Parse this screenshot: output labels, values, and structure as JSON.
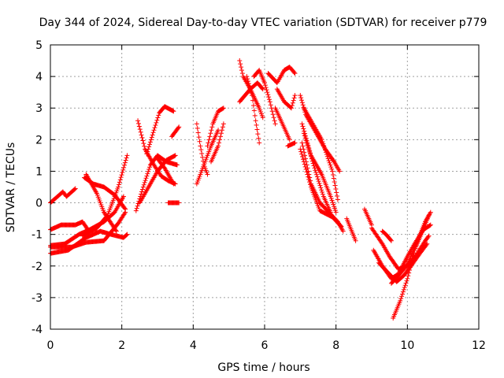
{
  "chart_data": {
    "type": "scatter",
    "title": "Day 344 of 2024, Sidereal Day-to-day VTEC variation (SDTVAR) for receiver p779",
    "xlabel": "GPS time / hours",
    "ylabel": "SDTVAR / TECUs",
    "xlim": [
      0,
      12
    ],
    "ylim": [
      -4,
      5
    ],
    "xticks": [
      0,
      2,
      4,
      6,
      8,
      10,
      12
    ],
    "yticks": [
      -4,
      -3,
      -2,
      -1,
      0,
      1,
      2,
      3,
      4,
      5
    ],
    "grid": true,
    "marker": "+",
    "color": "#ff0000",
    "tracks": [
      [
        [
          0.0,
          0.0
        ],
        [
          0.15,
          0.15
        ],
        [
          0.35,
          0.35
        ],
        [
          0.45,
          0.2
        ],
        [
          0.7,
          0.45
        ]
      ],
      [
        [
          0.0,
          -0.85
        ],
        [
          0.3,
          -0.7
        ],
        [
          0.7,
          -0.7
        ],
        [
          0.9,
          -0.6
        ],
        [
          1.05,
          -0.85
        ]
      ],
      [
        [
          0.0,
          -1.6
        ],
        [
          0.5,
          -1.5
        ],
        [
          1.0,
          -1.1
        ],
        [
          1.4,
          -0.9
        ],
        [
          1.7,
          -1.0
        ],
        [
          2.05,
          -1.1
        ],
        [
          2.15,
          -1.0
        ]
      ],
      [
        [
          0.0,
          -1.35
        ],
        [
          0.4,
          -1.3
        ],
        [
          0.8,
          -1.0
        ],
        [
          1.1,
          -0.85
        ],
        [
          1.5,
          -0.6
        ],
        [
          1.8,
          -0.3
        ],
        [
          2.05,
          0.2
        ]
      ],
      [
        [
          0.9,
          -1.05
        ],
        [
          1.3,
          -0.8
        ],
        [
          1.6,
          -0.4
        ],
        [
          1.9,
          0.5
        ],
        [
          2.15,
          1.5
        ]
      ],
      [
        [
          0.0,
          -1.4
        ],
        [
          0.6,
          -1.4
        ],
        [
          1.0,
          -1.25
        ],
        [
          1.5,
          -1.2
        ],
        [
          1.9,
          -0.65
        ],
        [
          2.1,
          -0.3
        ]
      ],
      [
        [
          0.95,
          0.8
        ],
        [
          1.2,
          0.6
        ],
        [
          1.5,
          0.5
        ],
        [
          1.8,
          0.25
        ],
        [
          2.1,
          -0.2
        ]
      ],
      [
        [
          1.0,
          0.9
        ],
        [
          1.3,
          0.3
        ],
        [
          1.5,
          -0.3
        ],
        [
          1.85,
          -0.9
        ]
      ],
      [
        [
          2.4,
          -0.25
        ],
        [
          2.6,
          0.5
        ],
        [
          2.8,
          1.2
        ],
        [
          3.0,
          1.5
        ],
        [
          3.25,
          1.3
        ],
        [
          3.55,
          1.2
        ]
      ],
      [
        [
          2.45,
          2.6
        ],
        [
          2.65,
          1.7
        ],
        [
          2.9,
          1.2
        ],
        [
          3.1,
          0.85
        ],
        [
          3.3,
          0.7
        ],
        [
          3.5,
          0.6
        ]
      ],
      [
        [
          2.5,
          0.0
        ],
        [
          2.8,
          0.6
        ],
        [
          3.0,
          1.0
        ],
        [
          3.25,
          1.35
        ],
        [
          3.5,
          1.5
        ]
      ],
      [
        [
          2.7,
          1.55
        ],
        [
          2.9,
          2.3
        ],
        [
          3.05,
          2.85
        ],
        [
          3.2,
          3.05
        ],
        [
          3.45,
          2.9
        ]
      ],
      [
        [
          3.0,
          1.4
        ],
        [
          3.2,
          1.1
        ],
        [
          3.45,
          0.6
        ]
      ],
      [
        [
          3.4,
          2.1
        ],
        [
          3.6,
          2.4
        ]
      ],
      [
        [
          3.3,
          0.0
        ],
        [
          3.6,
          0.0
        ]
      ],
      [
        [
          4.1,
          2.5
        ],
        [
          4.2,
          1.8
        ],
        [
          4.3,
          1.2
        ],
        [
          4.4,
          0.9
        ]
      ],
      [
        [
          4.1,
          0.6
        ],
        [
          4.3,
          1.2
        ],
        [
          4.5,
          1.8
        ],
        [
          4.7,
          2.3
        ]
      ],
      [
        [
          4.4,
          1.8
        ],
        [
          4.55,
          2.5
        ],
        [
          4.7,
          2.9
        ],
        [
          4.85,
          3.0
        ]
      ],
      [
        [
          4.5,
          1.3
        ],
        [
          4.7,
          1.8
        ],
        [
          4.85,
          2.5
        ]
      ],
      [
        [
          5.3,
          4.5
        ],
        [
          5.4,
          4.0
        ],
        [
          5.6,
          3.6
        ],
        [
          5.85,
          3.0
        ],
        [
          5.95,
          2.7
        ]
      ],
      [
        [
          5.3,
          3.2
        ],
        [
          5.6,
          3.6
        ],
        [
          5.8,
          3.8
        ],
        [
          5.95,
          3.6
        ]
      ],
      [
        [
          5.5,
          4.0
        ],
        [
          5.65,
          3.4
        ],
        [
          5.75,
          2.6
        ],
        [
          5.85,
          1.9
        ]
      ],
      [
        [
          5.7,
          4.0
        ],
        [
          5.85,
          4.2
        ],
        [
          6.0,
          3.8
        ]
      ],
      [
        [
          6.0,
          3.8
        ],
        [
          6.15,
          3.2
        ],
        [
          6.3,
          2.5
        ]
      ],
      [
        [
          6.1,
          4.1
        ],
        [
          6.35,
          3.8
        ],
        [
          6.55,
          4.2
        ],
        [
          6.7,
          4.3
        ],
        [
          6.85,
          4.1
        ]
      ],
      [
        [
          6.3,
          3.0
        ],
        [
          6.5,
          2.5
        ],
        [
          6.7,
          2.0
        ]
      ],
      [
        [
          6.35,
          3.6
        ],
        [
          6.55,
          3.2
        ],
        [
          6.75,
          3.0
        ],
        [
          6.85,
          3.4
        ]
      ],
      [
        [
          6.65,
          1.8
        ],
        [
          6.85,
          1.9
        ]
      ],
      [
        [
          7.0,
          3.4
        ],
        [
          7.15,
          2.8
        ],
        [
          7.4,
          2.3
        ],
        [
          7.7,
          1.7
        ],
        [
          7.95,
          1.3
        ],
        [
          8.1,
          1.0
        ]
      ],
      [
        [
          7.1,
          3.0
        ],
        [
          7.3,
          2.6
        ],
        [
          7.6,
          2.0
        ],
        [
          7.9,
          1.0
        ],
        [
          8.05,
          0.1
        ]
      ],
      [
        [
          7.05,
          2.5
        ],
        [
          7.3,
          1.5
        ],
        [
          7.6,
          0.9
        ],
        [
          7.85,
          0.2
        ],
        [
          8.0,
          -0.3
        ]
      ],
      [
        [
          7.1,
          2.2
        ],
        [
          7.4,
          1.1
        ],
        [
          7.65,
          0.2
        ],
        [
          7.85,
          -0.3
        ]
      ],
      [
        [
          7.05,
          1.9
        ],
        [
          7.3,
          0.6
        ],
        [
          7.55,
          0.0
        ],
        [
          7.8,
          -0.3
        ],
        [
          8.05,
          -0.6
        ],
        [
          8.2,
          -0.9
        ]
      ],
      [
        [
          7.0,
          1.7
        ],
        [
          7.3,
          0.5
        ],
        [
          7.55,
          -0.25
        ],
        [
          7.9,
          -0.45
        ],
        [
          8.15,
          -0.75
        ]
      ],
      [
        [
          8.8,
          -0.2
        ],
        [
          9.0,
          -0.7
        ]
      ],
      [
        [
          8.3,
          -0.5
        ],
        [
          8.55,
          -1.2
        ]
      ],
      [
        [
          9.0,
          -0.8
        ],
        [
          9.3,
          -1.3
        ],
        [
          9.5,
          -1.7
        ],
        [
          9.75,
          -2.1
        ],
        [
          10.0,
          -2.0
        ],
        [
          10.25,
          -1.65
        ],
        [
          10.5,
          -1.2
        ],
        [
          10.6,
          -1.05
        ]
      ],
      [
        [
          9.05,
          -1.5
        ],
        [
          9.3,
          -2.0
        ],
        [
          9.55,
          -2.4
        ],
        [
          9.75,
          -2.25
        ],
        [
          10.0,
          -1.7
        ],
        [
          10.2,
          -1.3
        ],
        [
          10.45,
          -0.85
        ],
        [
          10.65,
          -0.7
        ]
      ],
      [
        [
          9.2,
          -1.9
        ],
        [
          9.45,
          -2.2
        ],
        [
          9.7,
          -2.5
        ],
        [
          9.9,
          -2.3
        ],
        [
          10.1,
          -2.0
        ],
        [
          10.35,
          -1.6
        ],
        [
          10.55,
          -1.3
        ]
      ],
      [
        [
          9.6,
          -3.65
        ],
        [
          9.8,
          -3.1
        ],
        [
          10.0,
          -2.4
        ],
        [
          10.2,
          -1.5
        ],
        [
          10.4,
          -0.95
        ],
        [
          10.6,
          -0.4
        ]
      ],
      [
        [
          9.55,
          -2.55
        ],
        [
          9.75,
          -2.3
        ],
        [
          10.0,
          -1.95
        ],
        [
          10.25,
          -1.3
        ],
        [
          10.5,
          -0.6
        ],
        [
          10.65,
          -0.3
        ]
      ],
      [
        [
          9.3,
          -0.9
        ],
        [
          9.4,
          -1.0
        ],
        [
          9.55,
          -1.2
        ]
      ]
    ]
  }
}
